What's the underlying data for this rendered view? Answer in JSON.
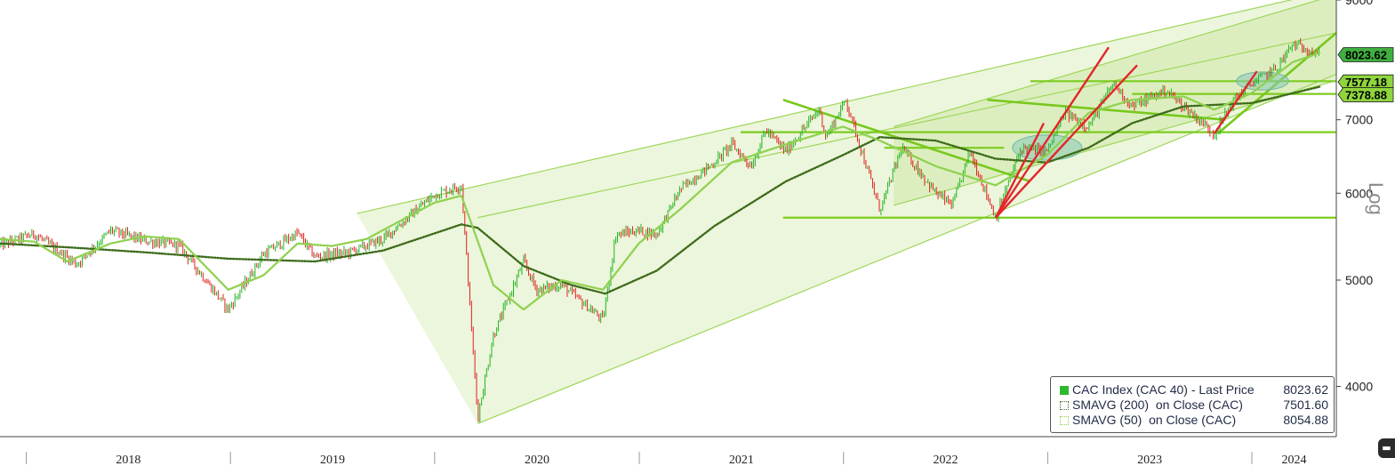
{
  "chart_data": {
    "type": "candlestick",
    "title": "",
    "scale_label": "Log",
    "x_ticks": [
      "2018",
      "2019",
      "2020",
      "2021",
      "2022",
      "2023",
      "2024"
    ],
    "y_ticks": [
      4000,
      5000,
      6000,
      7000,
      9000
    ],
    "ylim": [
      3600,
      9000
    ],
    "xlim": [
      "2017-11-15",
      "2024-05-31"
    ],
    "grid": false,
    "legend_position": "bottom-right",
    "last_value_tags": [
      {
        "value": "8023.62",
        "color": "#3fb03f"
      },
      {
        "value": "7577.18",
        "color": "#8fd63c"
      },
      {
        "value": "7378.88",
        "color": "#8fd63c"
      }
    ],
    "series": [
      {
        "name": "CAC Index (CAC 40) - Last Price",
        "last": "8023.62",
        "color": "#2fb82f",
        "points": [
          [
            "2017-11-15",
            5380
          ],
          [
            "2018-01-15",
            5510
          ],
          [
            "2018-04-01",
            5170
          ],
          [
            "2018-06-01",
            5550
          ],
          [
            "2018-08-01",
            5430
          ],
          [
            "2018-10-01",
            5380
          ],
          [
            "2018-12-28",
            4700
          ],
          [
            "2019-03-01",
            5280
          ],
          [
            "2019-05-01",
            5520
          ],
          [
            "2019-06-01",
            5250
          ],
          [
            "2019-08-01",
            5300
          ],
          [
            "2019-10-01",
            5450
          ],
          [
            "2019-12-31",
            5980
          ],
          [
            "2020-02-18",
            6100
          ],
          [
            "2020-03-18",
            3750
          ],
          [
            "2020-04-15",
            4450
          ],
          [
            "2020-06-08",
            5200
          ],
          [
            "2020-07-01",
            4900
          ],
          [
            "2020-08-15",
            4950
          ],
          [
            "2020-10-28",
            4600
          ],
          [
            "2020-11-20",
            5500
          ],
          [
            "2020-12-31",
            5550
          ],
          [
            "2021-02-01",
            5500
          ],
          [
            "2021-03-15",
            6050
          ],
          [
            "2021-05-15",
            6400
          ],
          [
            "2021-06-15",
            6650
          ],
          [
            "2021-07-20",
            6350
          ],
          [
            "2021-08-15",
            6850
          ],
          [
            "2021-09-20",
            6550
          ],
          [
            "2021-11-18",
            7150
          ],
          [
            "2021-12-01",
            6750
          ],
          [
            "2022-01-05",
            7300
          ],
          [
            "2022-03-07",
            5790
          ],
          [
            "2022-04-15",
            6600
          ],
          [
            "2022-06-15",
            6000
          ],
          [
            "2022-07-15",
            5850
          ],
          [
            "2022-08-15",
            6550
          ],
          [
            "2022-09-30",
            5700
          ],
          [
            "2022-11-15",
            6600
          ],
          [
            "2022-12-31",
            6550
          ],
          [
            "2023-02-01",
            7100
          ],
          [
            "2023-03-15",
            6900
          ],
          [
            "2023-04-28",
            7550
          ],
          [
            "2023-06-01",
            7200
          ],
          [
            "2023-07-31",
            7450
          ],
          [
            "2023-09-01",
            7200
          ],
          [
            "2023-10-26",
            6800
          ],
          [
            "2023-11-30",
            7300
          ],
          [
            "2023-12-31",
            7550
          ],
          [
            "2024-02-15",
            7800
          ],
          [
            "2024-03-14",
            8200
          ],
          [
            "2024-04-15",
            8100
          ],
          [
            "2024-05-01",
            8023.62
          ]
        ]
      },
      {
        "name": "SMAVG (200)  on Close (CAC)",
        "last": "7501.60",
        "color": "#3d6b1a",
        "points": [
          [
            "2017-11-15",
            5400
          ],
          [
            "2018-04-01",
            5350
          ],
          [
            "2018-08-01",
            5300
          ],
          [
            "2018-12-28",
            5230
          ],
          [
            "2019-06-01",
            5200
          ],
          [
            "2019-10-01",
            5320
          ],
          [
            "2020-02-18",
            5620
          ],
          [
            "2020-03-18",
            5580
          ],
          [
            "2020-06-08",
            5150
          ],
          [
            "2020-09-01",
            4950
          ],
          [
            "2020-11-01",
            4860
          ],
          [
            "2021-02-01",
            5100
          ],
          [
            "2021-05-15",
            5600
          ],
          [
            "2021-09-20",
            6150
          ],
          [
            "2021-12-31",
            6500
          ],
          [
            "2022-03-07",
            6750
          ],
          [
            "2022-06-15",
            6700
          ],
          [
            "2022-09-30",
            6450
          ],
          [
            "2022-12-31",
            6400
          ],
          [
            "2023-03-15",
            6600
          ],
          [
            "2023-06-01",
            6950
          ],
          [
            "2023-09-01",
            7200
          ],
          [
            "2023-12-31",
            7250
          ],
          [
            "2024-03-14",
            7400
          ],
          [
            "2024-05-01",
            7501.6
          ]
        ]
      },
      {
        "name": "SMAVG (50)  on Close (CAC)",
        "last": "8054.88",
        "color": "#8fd14f",
        "points": [
          [
            "2017-11-15",
            5450
          ],
          [
            "2018-01-15",
            5420
          ],
          [
            "2018-03-15",
            5200
          ],
          [
            "2018-06-01",
            5400
          ],
          [
            "2018-08-01",
            5480
          ],
          [
            "2018-10-01",
            5450
          ],
          [
            "2018-12-28",
            4900
          ],
          [
            "2019-03-01",
            5050
          ],
          [
            "2019-05-01",
            5400
          ],
          [
            "2019-07-01",
            5370
          ],
          [
            "2019-09-01",
            5450
          ],
          [
            "2019-12-31",
            5880
          ],
          [
            "2020-02-18",
            5970
          ],
          [
            "2020-04-15",
            4950
          ],
          [
            "2020-06-08",
            4700
          ],
          [
            "2020-08-15",
            5000
          ],
          [
            "2020-10-28",
            4900
          ],
          [
            "2020-12-31",
            5400
          ],
          [
            "2021-03-15",
            5800
          ],
          [
            "2021-06-15",
            6400
          ],
          [
            "2021-09-20",
            6650
          ],
          [
            "2021-12-31",
            6900
          ],
          [
            "2022-03-07",
            6700
          ],
          [
            "2022-06-15",
            6350
          ],
          [
            "2022-09-30",
            6100
          ],
          [
            "2022-12-31",
            6500
          ],
          [
            "2023-03-15",
            7100
          ],
          [
            "2023-06-01",
            7300
          ],
          [
            "2023-09-01",
            7350
          ],
          [
            "2023-10-26",
            7150
          ],
          [
            "2023-12-31",
            7400
          ],
          [
            "2024-03-14",
            7900
          ],
          [
            "2024-05-01",
            8054.88
          ]
        ]
      }
    ],
    "annotations": {
      "channel_lines": [
        [
          [
            "2019-08-15",
            5750
          ],
          [
            "2024-05-31",
            9200
          ]
        ],
        [
          [
            "2020-03-18",
            5700
          ],
          [
            "2024-05-31",
            8400
          ]
        ],
        [
          [
            "2020-03-18",
            3700
          ],
          [
            "2024-05-31",
            7700
          ]
        ],
        [
          [
            "2022-04-01",
            6900
          ],
          [
            "2024-05-31",
            9100
          ]
        ],
        [
          [
            "2022-04-01",
            5850
          ],
          [
            "2024-05-31",
            7600
          ]
        ]
      ],
      "horizontal_lines": [
        [
          [
            "2021-07-01",
            6820
          ],
          [
            "2024-05-31",
            6820
          ]
        ],
        [
          [
            "2021-09-15",
            5700
          ],
          [
            "2024-05-31",
            5700
          ]
        ],
        [
          [
            "2022-03-15",
            6600
          ],
          [
            "2022-10-15",
            6600
          ]
        ],
        [
          [
            "2022-12-01",
            7590
          ],
          [
            "2024-05-31",
            7590
          ]
        ],
        [
          [
            "2023-06-01",
            7390
          ],
          [
            "2024-05-31",
            7390
          ]
        ]
      ],
      "trend_lines": [
        [
          [
            "2021-09-15",
            7300
          ],
          [
            "2022-12-01",
            6150
          ]
        ],
        [
          [
            "2022-09-15",
            7300
          ],
          [
            "2023-11-15",
            7000
          ]
        ],
        [
          [
            "2023-11-01",
            6800
          ],
          [
            "2024-05-31",
            8400
          ]
        ]
      ],
      "fan_lines": [
        [
          [
            "2022-09-30",
            5700
          ],
          [
            "2022-12-25",
            6950
          ]
        ],
        [
          [
            "2022-09-30",
            5700
          ],
          [
            "2023-04-20",
            8150
          ]
        ],
        [
          [
            "2022-09-30",
            5700
          ],
          [
            "2023-06-10",
            7850
          ]
        ],
        [
          [
            "2023-10-26",
            6800
          ],
          [
            "2024-01-10",
            7750
          ]
        ]
      ],
      "highlight_ellipses": [
        {
          "center": [
            "2022-12-31",
            6600
          ],
          "x_span_days": 60,
          "y_range": [
            6430,
            6780
          ]
        },
        {
          "center": [
            "2024-01-20",
            7600
          ],
          "x_span_days": 45,
          "y_range": [
            7450,
            7740
          ]
        }
      ]
    }
  }
}
